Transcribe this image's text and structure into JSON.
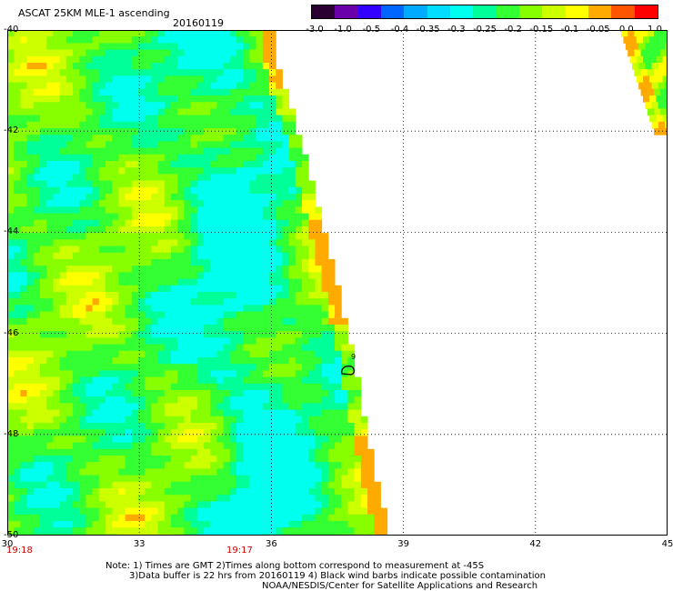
{
  "header": {
    "title": "ASCAT 25KM MLE-1 ascending",
    "date": "20160119"
  },
  "colorbar": {
    "colors": [
      "#2a0033",
      "#6a00aa",
      "#3300ff",
      "#0066ff",
      "#00aaff",
      "#00ddff",
      "#00ffee",
      "#00ff99",
      "#33ff33",
      "#88ff00",
      "#ccff00",
      "#ffff00",
      "#ffaa00",
      "#ff5500",
      "#ff0000"
    ],
    "tick_labels": [
      "-3.0",
      "-1.0",
      "-0.5",
      "-0.4",
      "-0.35",
      "-0.3",
      "-0.25",
      "-0.2",
      "-0.15",
      "-0.1",
      "-0.05",
      "0.0",
      "1.0"
    ]
  },
  "map": {
    "lon_range": [
      30,
      45
    ],
    "lat_range": [
      -50,
      -40
    ],
    "lat_labels": [
      "-40",
      "-42",
      "-44",
      "-46",
      "-48",
      "-50"
    ],
    "lon_labels": [
      "30",
      "33",
      "36",
      "39",
      "42",
      "45"
    ],
    "time_labels": [
      "19:18",
      "19:17"
    ],
    "wind_barb_label": "9"
  },
  "notes": {
    "line1": "Note: 1) Times are GMT 2)Times along bottom correspond to measurement at -45S",
    "line2": "3)Data buffer is 22 hrs from 20160119 4) Black wind barbs indicate possible contamination",
    "line3": "NOAA/NESDIS/Center for Satellite Applications and Research"
  }
}
